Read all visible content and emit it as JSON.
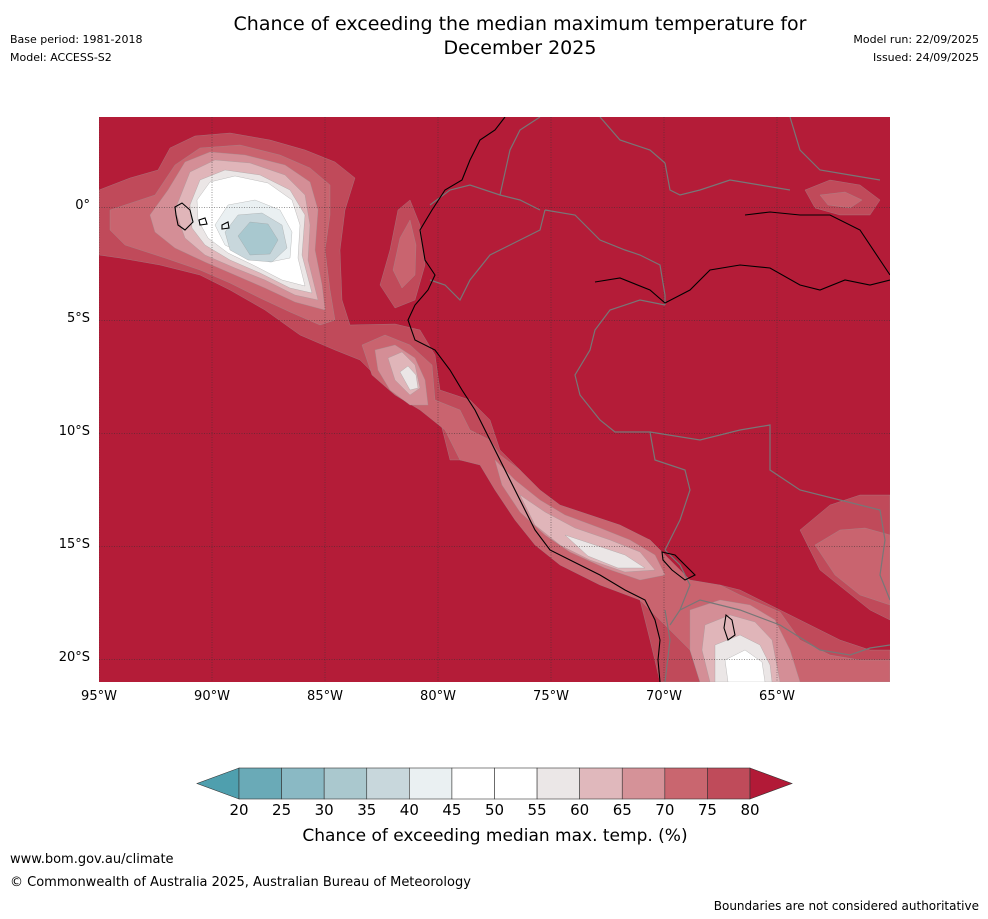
{
  "header": {
    "title_line1": "Chance of exceeding the median maximum temperature for",
    "title_line2": "December 2025",
    "base_period": "Base period: 1981-2018",
    "model": "Model: ACCESS-S2",
    "model_run": "Model run: 22/09/2025",
    "issued": "Issued: 24/09/2025"
  },
  "map": {
    "lat_labels": [
      "0°",
      "5°S",
      "10°S",
      "15°S",
      "20°S"
    ],
    "lat_values": [
      0,
      -5,
      -10,
      -15,
      -20
    ],
    "lon_labels": [
      "95°W",
      "90°W",
      "85°W",
      "80°W",
      "75°W",
      "70°W",
      "65°W"
    ],
    "lon_values": [
      -95,
      -90,
      -85,
      -80,
      -75,
      -70,
      -65
    ],
    "colors": {
      "c80plus": "#b41c38",
      "c75": "#c04a5a",
      "c70": "#c9646f",
      "c65": "#d48e96",
      "c60": "#e0b5b9",
      "c55": "#ebe6e6",
      "c50": "#ffffff",
      "c40": "#eaf0f2",
      "c35": "#c8d7dc",
      "c30": "#a8c8cf",
      "coast": "#000000",
      "border": "#777777"
    }
  },
  "colorbar": {
    "ticks": [
      "20",
      "25",
      "30",
      "35",
      "40",
      "45",
      "50",
      "55",
      "60",
      "65",
      "70",
      "75",
      "80"
    ],
    "colors": [
      "#6aaab7",
      "#8ab9c4",
      "#aac8ce",
      "#c8d7dc",
      "#eaf0f2",
      "#ffffff",
      "#ffffff",
      "#ebe7e7",
      "#e0b8bc",
      "#d59298",
      "#c9666f",
      "#bf4b5a"
    ],
    "under_color": "#4f9fae",
    "over_color": "#b21a37",
    "label": "Chance of exceeding median max. temp. (%)"
  },
  "footer": {
    "url": "www.bom.gov.au/climate",
    "copyright": "© Commonwealth of Australia 2025, Australian Bureau of Meteorology",
    "disclaimer": "Boundaries are not considered authoritative"
  }
}
